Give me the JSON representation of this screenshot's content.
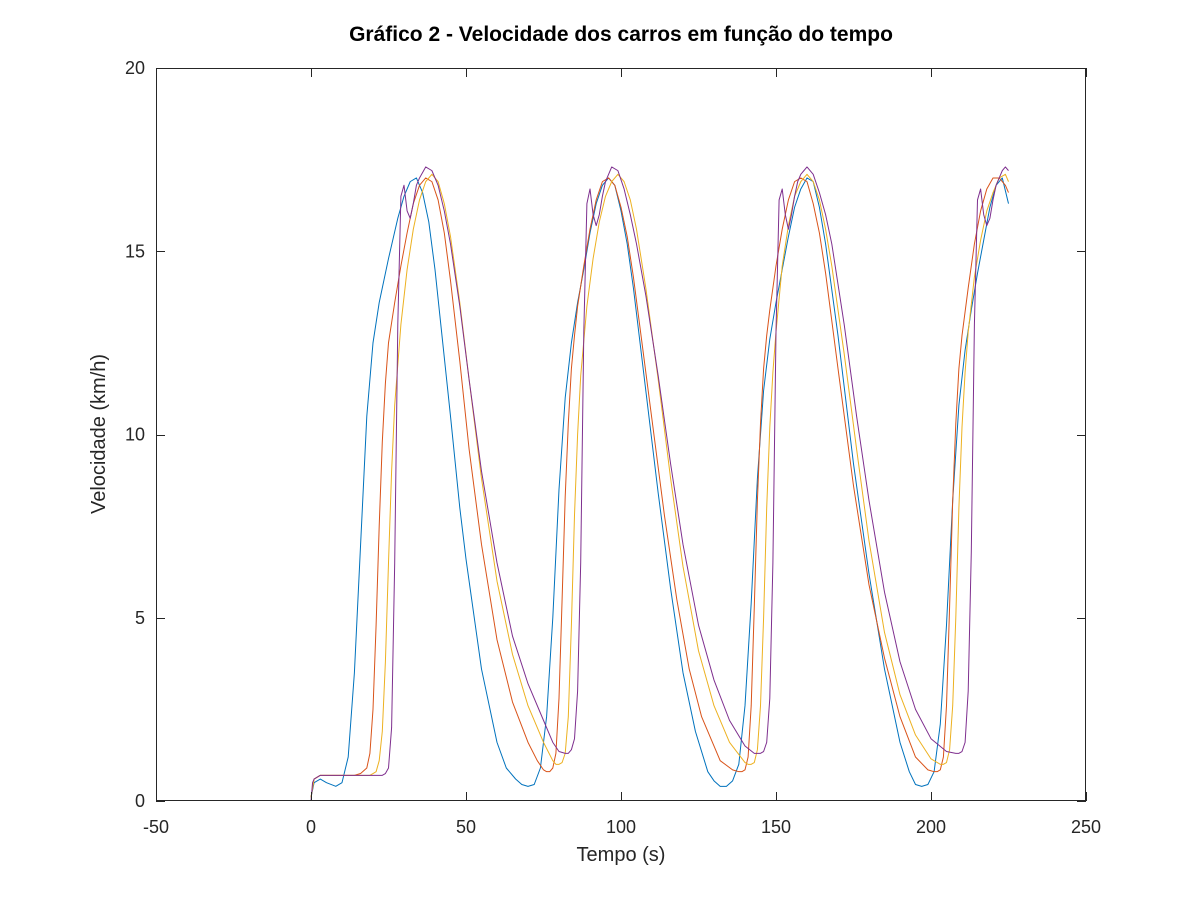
{
  "chart_data": {
    "type": "line",
    "title": "Gráfico 2 - Velocidade dos carros em função do tempo",
    "xlabel": "Tempo (s)",
    "ylabel": "Velocidade (km/h)",
    "xlim": [
      -50,
      250
    ],
    "ylim": [
      0,
      20
    ],
    "xticks": [
      -50,
      0,
      50,
      100,
      150,
      200,
      250
    ],
    "yticks": [
      0,
      5,
      10,
      15,
      20
    ],
    "xtick_labels": [
      "-50",
      "0",
      "50",
      "100",
      "150",
      "200",
      "250"
    ],
    "ytick_labels": [
      "0",
      "5",
      "10",
      "15",
      "20"
    ],
    "grid": false,
    "legend": "none",
    "series": [
      {
        "color": "#0072BD",
        "x": [
          0,
          1,
          3,
          5,
          8,
          10,
          12,
          14,
          16,
          18,
          20,
          22,
          25,
          28,
          30,
          32,
          34,
          36,
          38,
          40,
          42,
          45,
          48,
          50,
          55,
          60,
          63,
          66,
          68,
          70,
          72,
          74,
          76,
          78,
          80,
          82,
          84,
          86,
          88,
          90,
          92,
          94,
          96,
          98,
          100,
          102,
          104,
          108,
          112,
          116,
          120,
          124,
          128,
          130,
          132,
          134,
          136,
          138,
          140,
          142,
          144,
          146,
          148,
          150,
          152,
          154,
          156,
          158,
          160,
          162,
          164,
          166,
          170,
          175,
          180,
          185,
          190,
          193,
          195,
          197,
          199,
          201,
          203,
          205,
          207,
          209,
          211,
          213,
          215,
          217,
          219,
          221,
          223,
          225
        ],
        "y": [
          0.1,
          0.5,
          0.6,
          0.5,
          0.4,
          0.5,
          1.2,
          3.5,
          7.0,
          10.5,
          12.5,
          13.6,
          14.8,
          15.9,
          16.5,
          16.9,
          17.0,
          16.6,
          15.8,
          14.5,
          12.9,
          10.5,
          8.0,
          6.6,
          3.6,
          1.6,
          0.9,
          0.6,
          0.45,
          0.4,
          0.45,
          0.9,
          2.3,
          5.0,
          8.5,
          11.0,
          12.5,
          13.6,
          14.5,
          15.5,
          16.3,
          16.8,
          17.0,
          16.8,
          16.1,
          15.2,
          14.0,
          11.2,
          8.4,
          5.8,
          3.5,
          1.9,
          0.8,
          0.55,
          0.4,
          0.4,
          0.55,
          1.0,
          2.6,
          5.4,
          8.8,
          11.2,
          12.6,
          13.6,
          14.5,
          15.4,
          16.2,
          16.7,
          17.0,
          16.9,
          16.2,
          15.2,
          12.7,
          9.2,
          6.2,
          3.6,
          1.6,
          0.8,
          0.45,
          0.4,
          0.45,
          0.8,
          2.1,
          4.8,
          8.2,
          10.8,
          12.3,
          13.4,
          14.4,
          15.3,
          16.2,
          16.8,
          17.0,
          16.3
        ]
      },
      {
        "color": "#D95319",
        "x": [
          0,
          1,
          3,
          6,
          9,
          12,
          14,
          16,
          18,
          19,
          20,
          21,
          22,
          23,
          24,
          25,
          27,
          29,
          31,
          33,
          35,
          37,
          39,
          41,
          43,
          45,
          48,
          51,
          55,
          60,
          65,
          70,
          73,
          75,
          76,
          77,
          78,
          79,
          80,
          81,
          82,
          83,
          84,
          85,
          86,
          88,
          90,
          92,
          94,
          96,
          98,
          100,
          102,
          104,
          106,
          110,
          114,
          118,
          122,
          126,
          132,
          136,
          138,
          139,
          140,
          141,
          142,
          143,
          144,
          145,
          146,
          147,
          148,
          150,
          152,
          154,
          156,
          158,
          160,
          162,
          164,
          166,
          170,
          175,
          180,
          185,
          190,
          195,
          199,
          201,
          202,
          203,
          204,
          205,
          206,
          207,
          208,
          209,
          210,
          212,
          214,
          216,
          218,
          220,
          222,
          224,
          225
        ],
        "y": [
          0.1,
          0.6,
          0.7,
          0.7,
          0.7,
          0.7,
          0.7,
          0.75,
          0.9,
          1.3,
          2.5,
          4.8,
          7.5,
          9.8,
          11.4,
          12.5,
          13.6,
          14.6,
          15.5,
          16.3,
          16.8,
          17.0,
          16.9,
          16.4,
          15.5,
          14.2,
          12.0,
          9.6,
          7.0,
          4.4,
          2.7,
          1.6,
          1.1,
          0.85,
          0.8,
          0.8,
          0.9,
          1.3,
          2.8,
          5.5,
          8.3,
          10.3,
          11.8,
          12.7,
          13.5,
          14.6,
          15.6,
          16.4,
          16.9,
          17.0,
          16.8,
          16.2,
          15.4,
          14.3,
          13.0,
          10.4,
          7.8,
          5.5,
          3.6,
          2.3,
          1.1,
          0.85,
          0.8,
          0.8,
          0.85,
          1.2,
          2.6,
          5.3,
          8.2,
          10.3,
          11.8,
          12.7,
          13.4,
          14.6,
          15.6,
          16.4,
          16.9,
          17.0,
          16.9,
          16.3,
          15.5,
          14.4,
          11.8,
          8.6,
          5.9,
          3.9,
          2.3,
          1.2,
          0.85,
          0.8,
          0.8,
          0.85,
          1.2,
          2.6,
          5.3,
          8.2,
          10.3,
          11.8,
          12.7,
          14.0,
          15.2,
          16.1,
          16.7,
          17.0,
          17.0,
          16.8,
          16.6
        ]
      },
      {
        "color": "#EDB120",
        "x": [
          0,
          1,
          3,
          6,
          10,
          14,
          17,
          19,
          20,
          21,
          22,
          23,
          24,
          25,
          26,
          27,
          29,
          31,
          33,
          35,
          37,
          39,
          41,
          43,
          45,
          48,
          51,
          55,
          60,
          65,
          70,
          75,
          78,
          79,
          80,
          81,
          82,
          83,
          84,
          85,
          86,
          87,
          89,
          91,
          93,
          95,
          97,
          99,
          101,
          103,
          105,
          108,
          112,
          116,
          120,
          125,
          130,
          135,
          140,
          141,
          142,
          143,
          144,
          145,
          146,
          147,
          148,
          149,
          150,
          152,
          154,
          156,
          158,
          160,
          162,
          164,
          166,
          168,
          172,
          176,
          180,
          185,
          190,
          195,
          200,
          203,
          204,
          205,
          206,
          207,
          208,
          209,
          210,
          211,
          212,
          214,
          216,
          218,
          220,
          222,
          224,
          225
        ],
        "y": [
          0.1,
          0.6,
          0.7,
          0.7,
          0.7,
          0.7,
          0.7,
          0.7,
          0.75,
          0.8,
          1.1,
          1.9,
          3.8,
          6.5,
          9.0,
          10.8,
          13.0,
          14.5,
          15.6,
          16.4,
          16.9,
          17.1,
          16.9,
          16.3,
          15.4,
          13.6,
          11.5,
          8.8,
          6.0,
          4.0,
          2.6,
          1.6,
          1.1,
          1.0,
          1.0,
          1.05,
          1.3,
          2.3,
          4.8,
          7.8,
          10.0,
          11.6,
          13.5,
          14.8,
          15.8,
          16.5,
          16.9,
          17.1,
          16.9,
          16.4,
          15.6,
          14.0,
          11.5,
          8.8,
          6.4,
          4.1,
          2.6,
          1.6,
          1.05,
          1.0,
          1.0,
          1.05,
          1.4,
          2.6,
          5.0,
          8.0,
          10.2,
          11.7,
          12.8,
          14.6,
          15.7,
          16.5,
          16.9,
          17.1,
          16.9,
          16.4,
          15.6,
          14.6,
          12.2,
          9.6,
          7.1,
          4.6,
          2.9,
          1.8,
          1.15,
          1.0,
          1.0,
          1.05,
          1.4,
          2.6,
          5.0,
          8.0,
          10.2,
          11.7,
          12.8,
          14.3,
          15.3,
          16.1,
          16.6,
          17.0,
          17.1,
          16.9
        ]
      },
      {
        "color": "#7E2F8E",
        "x": [
          0,
          0.5,
          1,
          3,
          6,
          10,
          14,
          18,
          21,
          23,
          24,
          25,
          26,
          27,
          28,
          29,
          30,
          31,
          32,
          33,
          34,
          35,
          37,
          39,
          41,
          43,
          45,
          48,
          51,
          55,
          60,
          65,
          70,
          75,
          78,
          80,
          82,
          83,
          84,
          85,
          86,
          87,
          88,
          89,
          90,
          91,
          92,
          93,
          94,
          95,
          96,
          97,
          99,
          101,
          103,
          105,
          108,
          112,
          116,
          120,
          125,
          130,
          135,
          140,
          143,
          145,
          146,
          147,
          148,
          149,
          150,
          151,
          152,
          153,
          154,
          155,
          156,
          157,
          158,
          159,
          160,
          162,
          164,
          166,
          168,
          172,
          176,
          180,
          185,
          190,
          195,
          200,
          205,
          208,
          209,
          210,
          211,
          212,
          213,
          214,
          215,
          216,
          217,
          218,
          219,
          220,
          221,
          222,
          223,
          224,
          225
        ],
        "y": [
          0.0,
          0.5,
          0.6,
          0.7,
          0.7,
          0.7,
          0.7,
          0.7,
          0.7,
          0.7,
          0.75,
          0.9,
          2.0,
          6.5,
          13.0,
          16.5,
          16.8,
          16.1,
          15.9,
          16.3,
          16.8,
          17.0,
          17.3,
          17.2,
          16.8,
          16.1,
          15.2,
          13.5,
          11.5,
          9.0,
          6.5,
          4.5,
          3.2,
          2.2,
          1.6,
          1.35,
          1.3,
          1.3,
          1.4,
          1.7,
          3.0,
          6.5,
          12.8,
          16.3,
          16.7,
          16.0,
          15.7,
          16.0,
          16.5,
          16.9,
          17.1,
          17.3,
          17.2,
          16.7,
          16.0,
          15.2,
          13.8,
          11.6,
          9.2,
          7.0,
          4.8,
          3.3,
          2.2,
          1.5,
          1.3,
          1.3,
          1.35,
          1.6,
          2.8,
          6.5,
          12.8,
          16.4,
          16.7,
          16.0,
          15.6,
          16.0,
          16.5,
          16.9,
          17.1,
          17.2,
          17.3,
          17.1,
          16.6,
          16.0,
          15.2,
          13.0,
          10.5,
          8.2,
          5.7,
          3.8,
          2.5,
          1.7,
          1.35,
          1.3,
          1.3,
          1.35,
          1.6,
          3.0,
          6.8,
          13.0,
          16.4,
          16.7,
          16.0,
          15.7,
          15.9,
          16.4,
          16.8,
          17.0,
          17.2,
          17.3,
          17.2
        ]
      }
    ]
  }
}
